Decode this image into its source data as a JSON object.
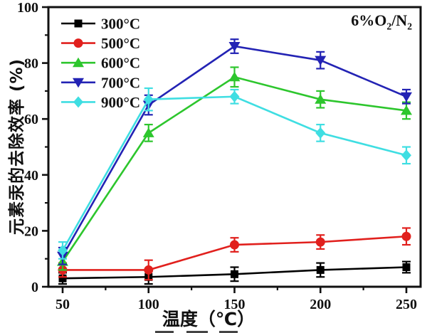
{
  "chart_data": {
    "type": "line",
    "title": "",
    "xlabel": "温度（℃）",
    "ylabel": "元素汞的去除效率 (%)",
    "annotation": "6%O2/N2",
    "annotation_runs": [
      {
        "text": "6%O",
        "sub": false
      },
      {
        "text": "2",
        "sub": true
      },
      {
        "text": "/N",
        "sub": false
      },
      {
        "text": "2",
        "sub": true
      }
    ],
    "x": [
      50,
      100,
      150,
      200,
      250
    ],
    "xlim": [
      42,
      258
    ],
    "ylim": [
      0,
      100
    ],
    "x_major_ticks": [
      50,
      100,
      150,
      200,
      250
    ],
    "x_minor_ticks": [
      75,
      125,
      175,
      225
    ],
    "y_major_ticks": [
      0,
      20,
      40,
      60,
      80,
      100
    ],
    "y_minor_ticks": [
      10,
      30,
      50,
      70,
      90
    ],
    "grid": false,
    "legend_position": "top-left-inside",
    "series": [
      {
        "name": "300°C",
        "color": "#000000",
        "marker": "square",
        "values": [
          3,
          3.5,
          4.5,
          6,
          7
        ],
        "errors": [
          2,
          2.5,
          2.5,
          2.5,
          2
        ]
      },
      {
        "name": "500°C",
        "color": "#e1201d",
        "marker": "circle",
        "values": [
          6,
          6,
          15,
          16,
          18
        ],
        "errors": [
          2.5,
          3.5,
          2.5,
          2.5,
          3
        ]
      },
      {
        "name": "600°C",
        "color": "#2dc62d",
        "marker": "triangle-up",
        "values": [
          9,
          55,
          75,
          67,
          63
        ],
        "errors": [
          3,
          3,
          3.5,
          3,
          3
        ]
      },
      {
        "name": "700°C",
        "color": "#2323b4",
        "marker": "triangle-down",
        "values": [
          11,
          65,
          86,
          81,
          68
        ],
        "errors": [
          3,
          3.5,
          2.5,
          3,
          2.5
        ]
      },
      {
        "name": "900°C",
        "color": "#3fdee2",
        "marker": "diamond",
        "values": [
          13,
          67,
          68,
          55,
          47
        ],
        "errors": [
          3,
          4,
          2.5,
          3,
          3
        ]
      }
    ]
  },
  "colors": {
    "axis": "#111111",
    "background": "#ffffff",
    "text": "#111111"
  }
}
